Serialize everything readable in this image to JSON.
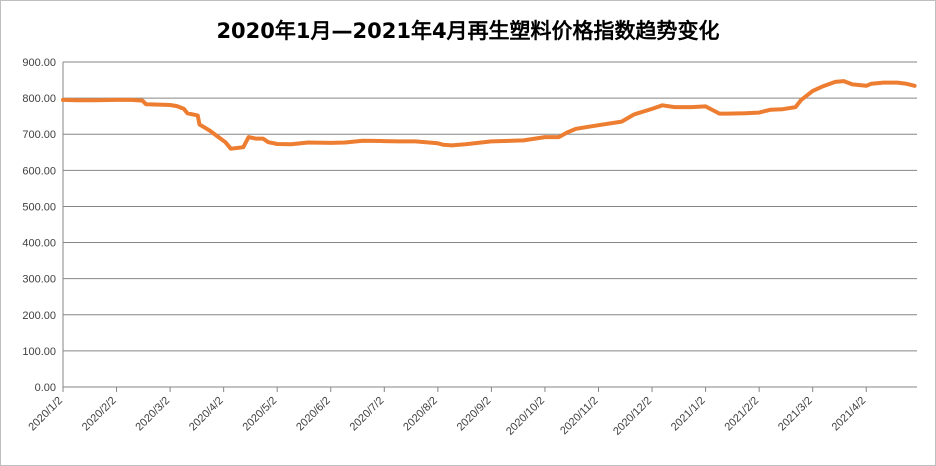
{
  "chart_data": {
    "type": "line",
    "title": "2020年1月—2021年4月再生塑料价格指数趋势变化",
    "xlabel": "",
    "ylabel": "",
    "ylim": [
      0,
      900
    ],
    "grid": true,
    "legend": "none",
    "y_ticks": [
      "0.00",
      "100.00",
      "200.00",
      "300.00",
      "400.00",
      "500.00",
      "600.00",
      "700.00",
      "800.00",
      "900.00"
    ],
    "x_ticks": [
      "2020/1/2",
      "2020/2/2",
      "2020/3/2",
      "2020/4/2",
      "2020/5/2",
      "2020/6/2",
      "2020/7/2",
      "2020/8/2",
      "2020/9/2",
      "2020/10/2",
      "2020/11/2",
      "2020/12/2",
      "2021/1/2",
      "2021/2/2",
      "2021/3/2",
      "2021/4/2"
    ],
    "series": [
      {
        "color": "#ed7d31",
        "points": [
          [
            "2020-01-02",
            795
          ],
          [
            "2020-01-10",
            794
          ],
          [
            "2020-01-20",
            794
          ],
          [
            "2020-02-02",
            795
          ],
          [
            "2020-02-10",
            795
          ],
          [
            "2020-02-16",
            793
          ],
          [
            "2020-02-18",
            783
          ],
          [
            "2020-02-25",
            782
          ],
          [
            "2020-03-02",
            781
          ],
          [
            "2020-03-06",
            778
          ],
          [
            "2020-03-10",
            770
          ],
          [
            "2020-03-12",
            758
          ],
          [
            "2020-03-18",
            752
          ],
          [
            "2020-03-19",
            727
          ],
          [
            "2020-03-25",
            710
          ],
          [
            "2020-03-30",
            692
          ],
          [
            "2020-04-03",
            678
          ],
          [
            "2020-04-06",
            660
          ],
          [
            "2020-04-10",
            662
          ],
          [
            "2020-04-13",
            664
          ],
          [
            "2020-04-16",
            692
          ],
          [
            "2020-04-20",
            688
          ],
          [
            "2020-04-24",
            688
          ],
          [
            "2020-04-27",
            678
          ],
          [
            "2020-05-02",
            673
          ],
          [
            "2020-05-10",
            672
          ],
          [
            "2020-05-20",
            677
          ],
          [
            "2020-06-02",
            676
          ],
          [
            "2020-06-10",
            677
          ],
          [
            "2020-06-20",
            682
          ],
          [
            "2020-07-02",
            681
          ],
          [
            "2020-07-10",
            680
          ],
          [
            "2020-07-20",
            680
          ],
          [
            "2020-08-02",
            675
          ],
          [
            "2020-08-05",
            671
          ],
          [
            "2020-08-10",
            669
          ],
          [
            "2020-08-18",
            672
          ],
          [
            "2020-09-02",
            680
          ],
          [
            "2020-09-20",
            683
          ],
          [
            "2020-10-02",
            692
          ],
          [
            "2020-10-10",
            692
          ],
          [
            "2020-10-15",
            705
          ],
          [
            "2020-10-20",
            715
          ],
          [
            "2020-11-02",
            725
          ],
          [
            "2020-11-15",
            735
          ],
          [
            "2020-11-22",
            755
          ],
          [
            "2020-12-02",
            770
          ],
          [
            "2020-12-08",
            780
          ],
          [
            "2020-12-15",
            775
          ],
          [
            "2020-12-25",
            775
          ],
          [
            "2021-01-02",
            777
          ],
          [
            "2021-01-10",
            757
          ],
          [
            "2021-01-15",
            757
          ],
          [
            "2021-01-25",
            758
          ],
          [
            "2021-02-02",
            760
          ],
          [
            "2021-02-08",
            768
          ],
          [
            "2021-02-14",
            769
          ],
          [
            "2021-02-21",
            775
          ],
          [
            "2021-02-24",
            795
          ],
          [
            "2021-03-02",
            820
          ],
          [
            "2021-03-08",
            833
          ],
          [
            "2021-03-15",
            845
          ],
          [
            "2021-03-20",
            847
          ],
          [
            "2021-03-25",
            838
          ],
          [
            "2021-04-02",
            834
          ],
          [
            "2021-04-05",
            840
          ],
          [
            "2021-04-12",
            843
          ],
          [
            "2021-04-20",
            843
          ],
          [
            "2021-04-25",
            840
          ],
          [
            "2021-04-30",
            834
          ]
        ]
      }
    ]
  }
}
